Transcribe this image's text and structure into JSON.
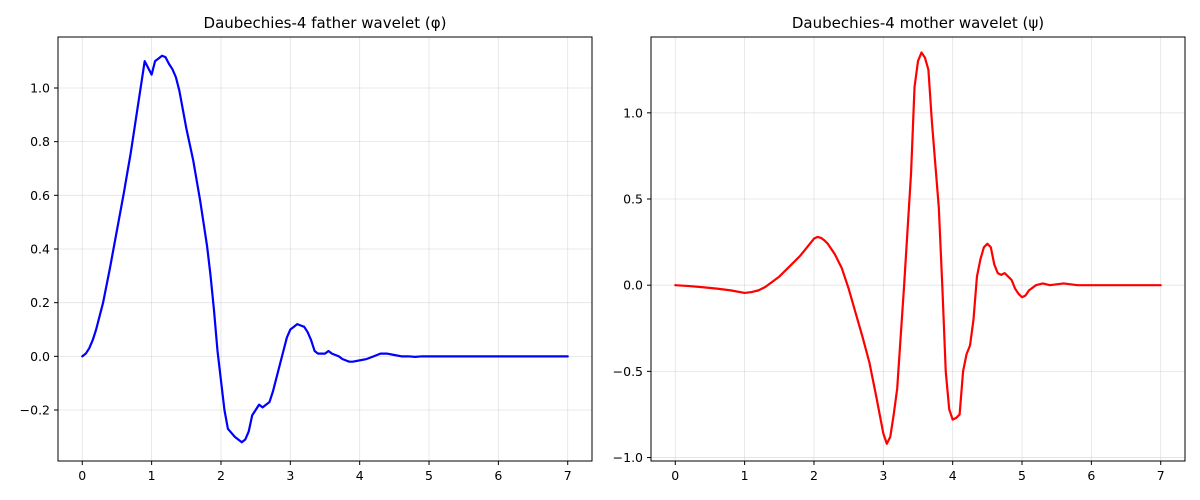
{
  "chart_data": [
    {
      "type": "line",
      "title": "Daubechies-4 father wavelet (φ)",
      "xlabel": "",
      "ylabel": "",
      "xlim": [
        -0.35,
        7.35
      ],
      "ylim": [
        -0.39,
        1.19
      ],
      "x_ticks": [
        0,
        1,
        2,
        3,
        4,
        5,
        6,
        7
      ],
      "y_ticks": [
        -0.2,
        0.0,
        0.2,
        0.4,
        0.6,
        0.8,
        1.0
      ],
      "grid": true,
      "series": [
        {
          "color": "#0000ff",
          "x": [
            0,
            0.05,
            0.1,
            0.15,
            0.2,
            0.3,
            0.4,
            0.5,
            0.6,
            0.7,
            0.8,
            0.9,
            1.0,
            1.05,
            1.1,
            1.15,
            1.2,
            1.25,
            1.3,
            1.35,
            1.4,
            1.5,
            1.6,
            1.7,
            1.8,
            1.85,
            1.9,
            1.95,
            2.0,
            2.05,
            2.1,
            2.2,
            2.3,
            2.35,
            2.4,
            2.45,
            2.5,
            2.55,
            2.6,
            2.7,
            2.75,
            2.8,
            2.85,
            2.9,
            2.95,
            3.0,
            3.05,
            3.1,
            3.15,
            3.2,
            3.25,
            3.3,
            3.35,
            3.4,
            3.45,
            3.5,
            3.55,
            3.6,
            3.7,
            3.75,
            3.8,
            3.85,
            3.9,
            4.0,
            4.1,
            4.2,
            4.3,
            4.4,
            4.5,
            4.6,
            4.7,
            4.8,
            4.9,
            5.0,
            5.2,
            5.4,
            6.0,
            7.0
          ],
          "y": [
            0.0,
            0.01,
            0.03,
            0.06,
            0.1,
            0.2,
            0.33,
            0.47,
            0.61,
            0.76,
            0.93,
            1.1,
            1.05,
            1.1,
            1.11,
            1.12,
            1.115,
            1.09,
            1.07,
            1.04,
            0.99,
            0.85,
            0.73,
            0.58,
            0.41,
            0.3,
            0.17,
            0.02,
            -0.09,
            -0.2,
            -0.27,
            -0.3,
            -0.32,
            -0.31,
            -0.28,
            -0.22,
            -0.2,
            -0.18,
            -0.19,
            -0.17,
            -0.13,
            -0.08,
            -0.03,
            0.02,
            0.07,
            0.1,
            0.11,
            0.12,
            0.115,
            0.11,
            0.09,
            0.06,
            0.02,
            0.01,
            0.01,
            0.01,
            0.02,
            0.01,
            0.0,
            -0.01,
            -0.015,
            -0.02,
            -0.02,
            -0.015,
            -0.01,
            0.0,
            0.01,
            0.01,
            0.005,
            0.0,
            0.0,
            -0.002,
            0.0,
            0.0,
            0.0,
            0.0,
            0.0,
            0.0
          ]
        }
      ]
    },
    {
      "type": "line",
      "title": "Daubechies-4 mother wavelet (ψ)",
      "xlabel": "",
      "ylabel": "",
      "xlim": [
        -0.35,
        7.35
      ],
      "ylim": [
        -1.02,
        1.44
      ],
      "x_ticks": [
        0,
        1,
        2,
        3,
        4,
        5,
        6,
        7
      ],
      "y_ticks": [
        -1.0,
        -0.5,
        0.0,
        0.5,
        1.0
      ],
      "grid": true,
      "series": [
        {
          "color": "#ff0000",
          "x": [
            0,
            0.2,
            0.4,
            0.6,
            0.8,
            1.0,
            1.1,
            1.2,
            1.3,
            1.4,
            1.5,
            1.6,
            1.7,
            1.8,
            1.9,
            2.0,
            2.05,
            2.1,
            2.15,
            2.2,
            2.3,
            2.4,
            2.5,
            2.6,
            2.7,
            2.8,
            2.9,
            3.0,
            3.05,
            3.1,
            3.15,
            3.2,
            3.3,
            3.4,
            3.45,
            3.5,
            3.55,
            3.6,
            3.65,
            3.7,
            3.75,
            3.8,
            3.85,
            3.9,
            3.95,
            4.0,
            4.05,
            4.1,
            4.15,
            4.2,
            4.25,
            4.3,
            4.35,
            4.4,
            4.45,
            4.5,
            4.55,
            4.6,
            4.65,
            4.7,
            4.75,
            4.8,
            4.85,
            4.9,
            4.95,
            5.0,
            5.05,
            5.1,
            5.2,
            5.3,
            5.4,
            5.5,
            5.6,
            5.8,
            6.0,
            7.0
          ],
          "y": [
            0.0,
            -0.005,
            -0.012,
            -0.02,
            -0.03,
            -0.045,
            -0.04,
            -0.03,
            -0.01,
            0.02,
            0.05,
            0.09,
            0.13,
            0.17,
            0.22,
            0.27,
            0.28,
            0.275,
            0.26,
            0.24,
            0.18,
            0.1,
            -0.02,
            -0.16,
            -0.3,
            -0.45,
            -0.65,
            -0.86,
            -0.92,
            -0.88,
            -0.75,
            -0.6,
            0.0,
            0.65,
            1.15,
            1.3,
            1.35,
            1.32,
            1.25,
            0.95,
            0.7,
            0.45,
            0.0,
            -0.5,
            -0.72,
            -0.78,
            -0.77,
            -0.75,
            -0.5,
            -0.4,
            -0.35,
            -0.2,
            0.05,
            0.15,
            0.22,
            0.24,
            0.22,
            0.12,
            0.07,
            0.06,
            0.07,
            0.05,
            0.03,
            -0.02,
            -0.05,
            -0.07,
            -0.06,
            -0.03,
            0.0,
            0.01,
            0.0,
            0.005,
            0.01,
            0.0,
            0.0,
            0.0
          ]
        }
      ]
    }
  ]
}
